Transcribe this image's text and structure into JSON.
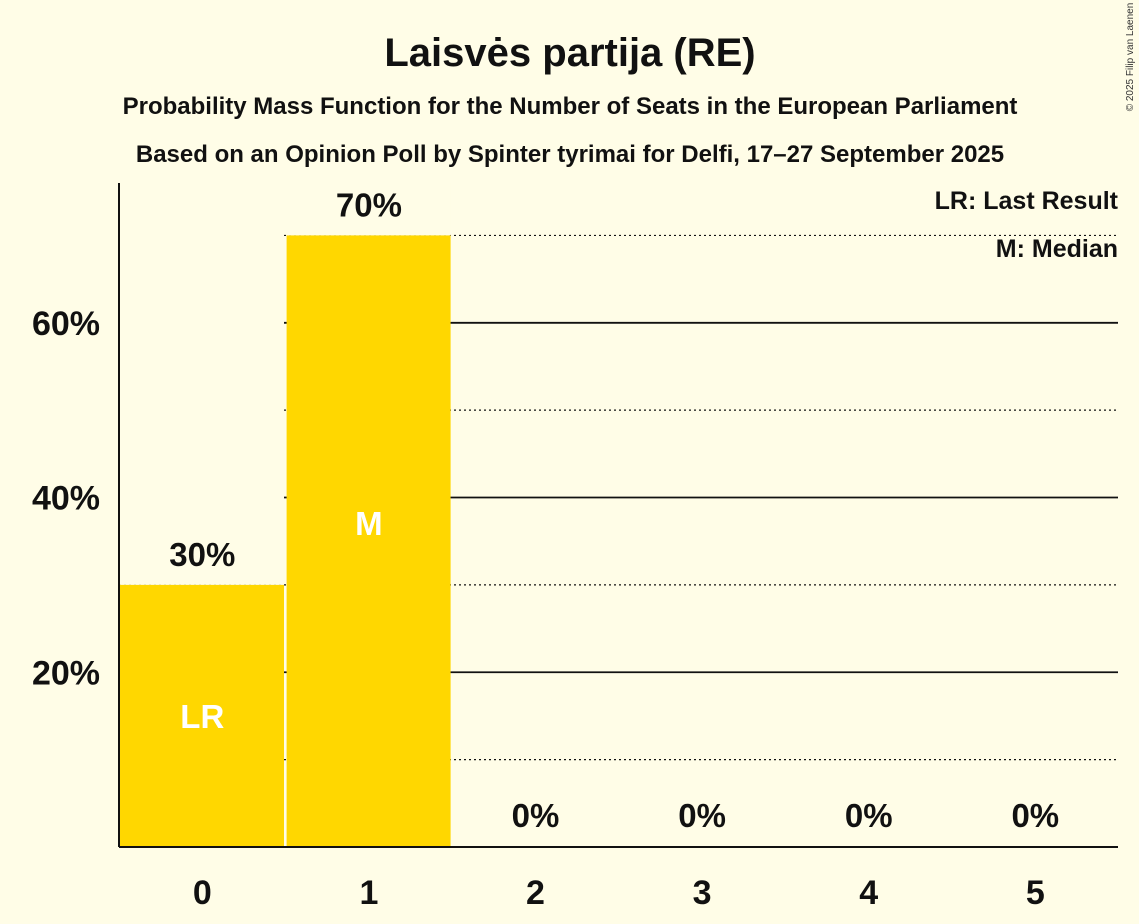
{
  "chart_data": {
    "type": "bar",
    "title": "Laisvės partija (RE)",
    "subtitle": "Probability Mass Function for the Number of Seats in the European Parliament",
    "subtitle2": "Based on an Opinion Poll by Spinter tyrimai for Delfi, 17–27 September 2025",
    "copyright": "© 2025 Filip van Laenen",
    "categories": [
      "0",
      "1",
      "2",
      "3",
      "4",
      "5"
    ],
    "values": [
      30,
      70,
      0,
      0,
      0,
      0
    ],
    "value_labels": [
      "30%",
      "70%",
      "0%",
      "0%",
      "0%",
      "0%"
    ],
    "markers": [
      "LR",
      "M",
      "",
      "",
      "",
      ""
    ],
    "legend": [
      "LR: Last Result",
      "M: Median"
    ],
    "yticks": [
      {
        "value": 20,
        "label": "20%"
      },
      {
        "value": 40,
        "label": "40%"
      },
      {
        "value": 60,
        "label": "60%"
      }
    ],
    "minor_gridlines": [
      10,
      30,
      50,
      70
    ],
    "ylim": [
      0,
      76
    ],
    "xlabel": "",
    "ylabel": "",
    "bar_color": "#ffd700",
    "background_color": "#fffde7"
  }
}
